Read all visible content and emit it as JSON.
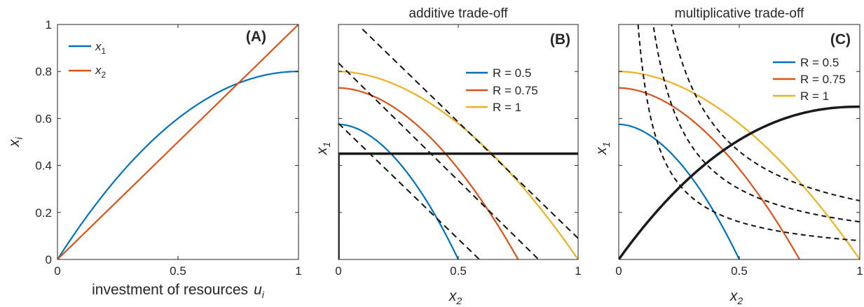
{
  "chart_data": [
    {
      "panel_label": "(A)",
      "type": "line",
      "title": "",
      "xlabel": "investment of resources",
      "xlabel_math": "u",
      "xlabel_sub": "i",
      "ylabel": "x",
      "ylabel_sub": "i",
      "xlim": [
        0,
        1
      ],
      "ylim": [
        0,
        1
      ],
      "xticks": [
        "0",
        "0.5",
        "1"
      ],
      "yticks": [
        "0",
        "0.2",
        "0.4",
        "0.6",
        "0.8",
        "1"
      ],
      "legend": {
        "placement": "top-left",
        "entries": [
          {
            "label": "x",
            "sub": "1"
          },
          {
            "label": "x",
            "sub": "2"
          }
        ]
      },
      "series": [
        {
          "color": "#0072BD",
          "x": [
            0,
            0.1,
            0.2,
            0.3,
            0.4,
            0.5,
            0.6,
            0.7,
            0.8,
            0.9,
            1.0
          ],
          "y": [
            0,
            0.152,
            0.288,
            0.408,
            0.512,
            0.6,
            0.672,
            0.728,
            0.768,
            0.792,
            0.8
          ]
        },
        {
          "color": "#D95319",
          "x": [
            0,
            1
          ],
          "y": [
            0,
            1
          ]
        }
      ]
    },
    {
      "panel_label": "(B)",
      "type": "line",
      "title": "additive trade-off",
      "xlabel": "x",
      "xlabel_sub": "2",
      "ylabel": "x",
      "ylabel_sub": "1",
      "xlim": [
        0,
        1
      ],
      "ylim": [
        0,
        1
      ],
      "xticks": [
        "0",
        "0.5",
        "1"
      ],
      "legend": {
        "placement": "top-right",
        "entries": [
          "R = 0.5",
          "R = 0.75",
          "R = 1"
        ]
      },
      "series": [
        {
          "name": "R = 0.5",
          "color": "#0072BD",
          "R": 0.5
        },
        {
          "name": "R = 0.75",
          "color": "#D95319",
          "R": 0.75
        },
        {
          "name": "R = 1",
          "color": "#EDB120",
          "R": 1
        }
      ],
      "dashed_lines": [
        {
          "x": [
            0,
            0.588
          ],
          "y": [
            0.579,
            0
          ]
        },
        {
          "x": [
            0,
            0.835
          ],
          "y": [
            0.836,
            0
          ]
        },
        {
          "x": [
            0.1,
            1
          ],
          "y": [
            0.98,
            0.09
          ]
        }
      ],
      "boundary": {
        "x": [
          0,
          0,
          1
        ],
        "y": [
          0,
          0.45,
          0.45
        ]
      }
    },
    {
      "panel_label": "(C)",
      "type": "line",
      "title": "multiplicative trade-off",
      "xlabel": "x",
      "xlabel_sub": "2",
      "ylabel": "x",
      "ylabel_sub": "1",
      "xlim": [
        0,
        1
      ],
      "ylim": [
        0,
        1
      ],
      "xticks": [
        "0",
        "0.5",
        "1"
      ],
      "legend": {
        "placement": "top-right",
        "entries": [
          "R = 0.5",
          "R = 0.75",
          "R = 1"
        ]
      },
      "series": [
        {
          "name": "R = 0.5",
          "color": "#0072BD",
          "R": 0.5
        },
        {
          "name": "R = 0.75",
          "color": "#D95319",
          "R": 0.75
        },
        {
          "name": "R = 1",
          "color": "#EDB120",
          "R": 1
        }
      ],
      "dashed_hyperbolas": [
        0.08,
        0.14,
        0.21
      ],
      "boundary": {
        "x": [
          0,
          0.05,
          0.1,
          0.2,
          0.3,
          0.4,
          0.5,
          0.6,
          0.7,
          0.8,
          0.9,
          1.0
        ],
        "y": [
          0,
          0.065,
          0.125,
          0.228,
          0.313,
          0.385,
          0.443,
          0.494,
          0.545,
          0.586,
          0.62,
          0.65
        ]
      }
    }
  ]
}
